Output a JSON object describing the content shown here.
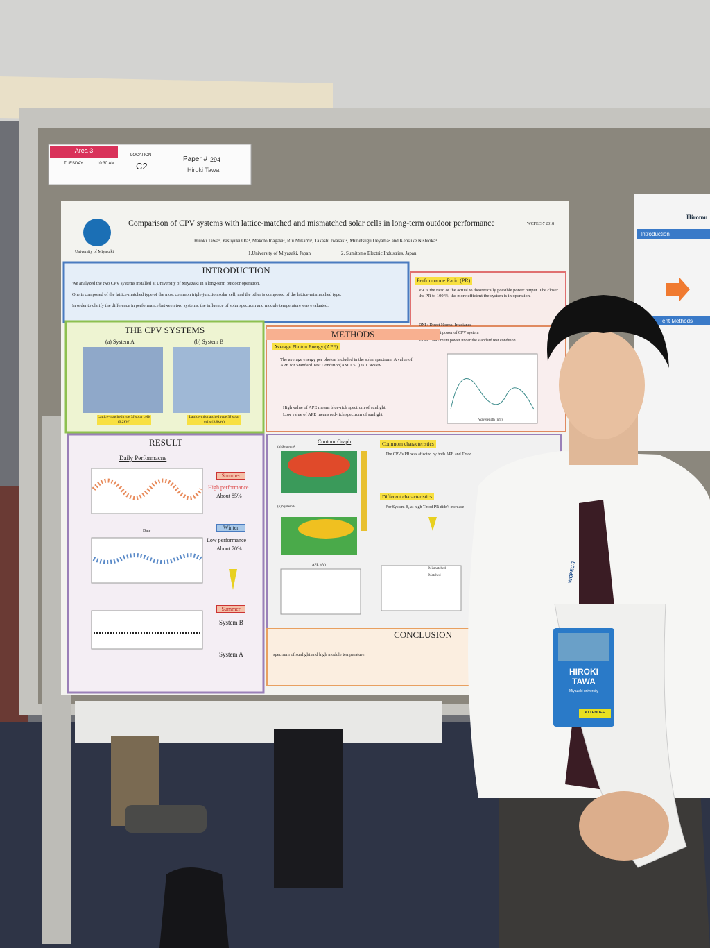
{
  "sign": {
    "area": "Area 3",
    "day": "TUESDAY",
    "time": "10:30 AM",
    "location_label": "LOCATION",
    "location": "C2",
    "paper_label": "Paper #",
    "paper": "294",
    "presenter": "Hiroki Tawa"
  },
  "poster": {
    "university": "University of Miyazaki",
    "conference": "WCPEC-7 2018",
    "title": "Comparison of CPV systems with lattice-matched and mismatched solar cells in long-term outdoor performance",
    "authors": "Hiroki Tawa¹, Yasuyuki Ota¹, Makoto Inagaki², Rui Mikami², Takashi Iwasaki², Munetsugu Ueyama² and Kensuke Nishioka¹",
    "affiliations": [
      "1.University of Miyazaki, Japan",
      "2. Sumitomo Electric Industries, Japan"
    ],
    "introduction": {
      "heading": "INTRODUCTION",
      "bullets": [
        "We analyzed the two CPV systems installed at University of Miyazaki in a long-term outdoor operation.",
        "One is composed of the lattice-matched type of the most common triple-junction solar cell, and the other is composed of the lattice-mismatched type.",
        "In order to clarify the difference in performance between two systems, the influence of solar spectrum and module temperature was evaluated."
      ]
    },
    "performance_ratio": {
      "heading": "Performance Ratio (PR)",
      "text": "PR is the ratio of the actual to theoretically possible power output. The closer the PR to 100 %, the more efficient the system is in operation.",
      "defs": [
        "DNI : Direct Normal Irradiance",
        "Pout : Output power of CPV system",
        "Pmax : Maximum power under the standard test condition"
      ]
    },
    "cpv_systems": {
      "heading": "THE CPV SYSTEMS",
      "a": "(a) System A",
      "b": "(b) System B",
      "a_caption": "Lattice-matched type 3J solar cells (9.2kW)",
      "b_caption": "Lattice-mismatched type 3J solar cells (9.8kW)"
    },
    "methods": {
      "heading": "METHODS",
      "sub": "Average Photon Energy (APE)",
      "text": "The average energy per photon included in the solar spectrum. A value of APE for Standard Test Condition(AM 1.5D) is 1.369 eV",
      "high": "High value of APE means blue-rich spectrum of sunlight.",
      "low": "Low value of APE means red-rich spectrum of sunlight.",
      "xlabel": "Wavelength (nm)"
    },
    "result": {
      "heading": "RESULT",
      "sub": "Daily Performacne",
      "summer": "Summer",
      "high": "High performance",
      "high_value": "About 85%",
      "winter": "Winter",
      "low": "Low performance",
      "low_value": "About 70%",
      "summer2": "Summer",
      "system_b": "System B",
      "system_a": "System A",
      "xlabel": "Date"
    },
    "contour": {
      "heading": "Contour Graph",
      "system_a": "(a) System A",
      "system_b": "(b) System B",
      "xlabel": "APE (eV)",
      "common": "Commom characteristics",
      "common_text": "The CPV's PR was affected by both APE and Tmod",
      "different": "Different characteristics",
      "different_text": "For System B, at high Tmod PR didn't increase",
      "legend": [
        "Mismatched",
        "Matched"
      ]
    },
    "conclusion": {
      "heading": "CONCLUSION",
      "text": "spectrum of sunlight and high module temperature."
    },
    "neighbor": {
      "title": "Hiromu",
      "intro": "Introduction",
      "methods": "ent Methods"
    }
  },
  "badge": {
    "first": "HIROKI",
    "last": "TAWA",
    "affiliation": "Miyazaki university",
    "role": "ATTENDEE",
    "lanyard": "WCPEC-7"
  }
}
